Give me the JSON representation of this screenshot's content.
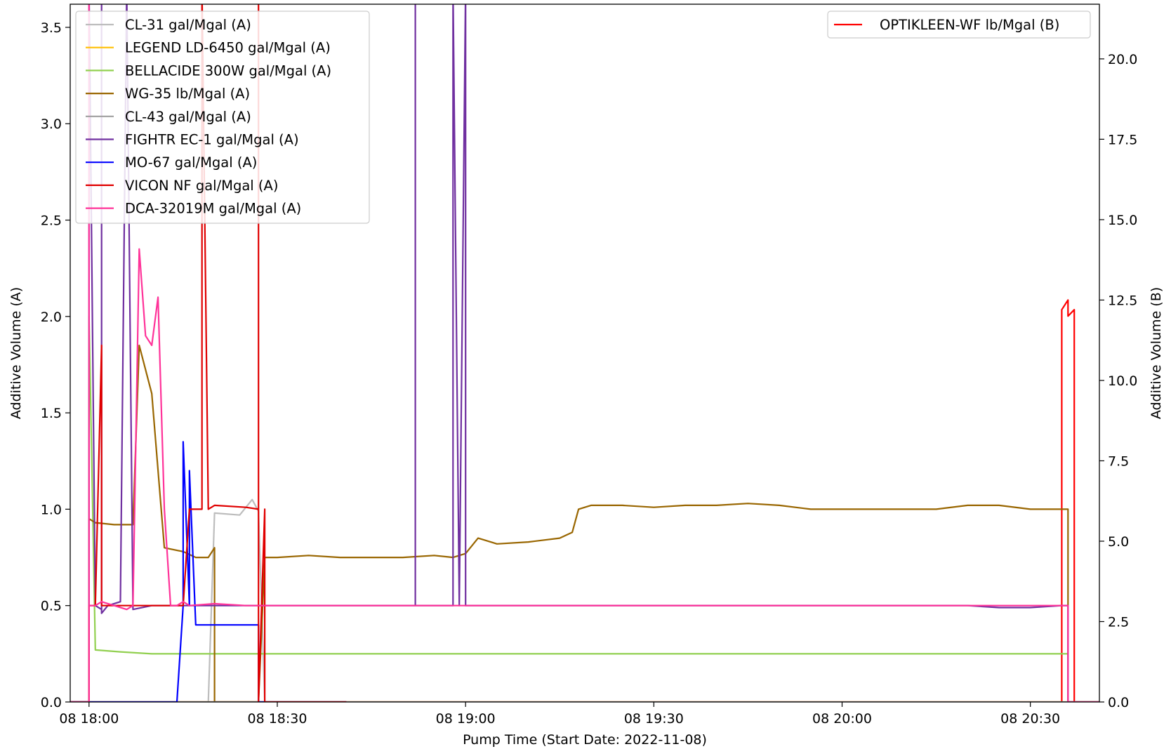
{
  "chart_data": {
    "type": "line",
    "title": "",
    "xlabel": "Pump Time (Start Date: 2022-11-08)",
    "ylabel_left": "Additive Volume (A)",
    "ylabel_right": "Additive Volume (B)",
    "x_unit": "time of day (HH:MM) on 2022-11-08",
    "xlim": [
      "17:57",
      "20:41"
    ],
    "x_ticks": [
      {
        "x": "18:00",
        "label": "08 18:00"
      },
      {
        "x": "18:30",
        "label": "08 18:30"
      },
      {
        "x": "19:00",
        "label": "08 19:00"
      },
      {
        "x": "19:30",
        "label": "08 19:30"
      },
      {
        "x": "20:00",
        "label": "08 20:00"
      },
      {
        "x": "20:30",
        "label": "08 20:30"
      }
    ],
    "ylim_left": [
      0,
      3.62
    ],
    "y_ticks_left": [
      {
        "v": 0,
        "label": "0.0"
      },
      {
        "v": 0.5,
        "label": "0.5"
      },
      {
        "v": 1.0,
        "label": "1.0"
      },
      {
        "v": 1.5,
        "label": "1.5"
      },
      {
        "v": 2.0,
        "label": "2.0"
      },
      {
        "v": 2.5,
        "label": "2.5"
      },
      {
        "v": 3.0,
        "label": "3.0"
      },
      {
        "v": 3.5,
        "label": "3.5"
      }
    ],
    "ylim_right": [
      0,
      21.7
    ],
    "y_ticks_right": [
      {
        "v": 0,
        "label": "0.0"
      },
      {
        "v": 2.5,
        "label": "2.5"
      },
      {
        "v": 5.0,
        "label": "5.0"
      },
      {
        "v": 7.5,
        "label": "7.5"
      },
      {
        "v": 10.0,
        "label": "10.0"
      },
      {
        "v": 12.5,
        "label": "12.5"
      },
      {
        "v": 15.0,
        "label": "15.0"
      },
      {
        "v": 17.5,
        "label": "17.5"
      },
      {
        "v": 20.0,
        "label": "20.0"
      }
    ],
    "grid": false,
    "legend_left_position": "upper-left",
    "legend_right_position": "upper-right",
    "series": [
      {
        "name": "CL-31 gal/Mgal (A)",
        "color": "#bdbdbd",
        "axis": "A",
        "x": [
          "17:57",
          "18:19",
          "18:20",
          "18:24",
          "18:26",
          "18:27",
          "18:28",
          "18:40"
        ],
        "y": [
          0,
          0,
          0.98,
          0.97,
          1.05,
          0.99,
          0,
          0
        ]
      },
      {
        "name": "LEGEND LD-6450 gal/Mgal (A)",
        "color": "#ffbf00",
        "axis": "A",
        "x": [
          "17:57",
          "20:41"
        ],
        "y": [
          0,
          0
        ]
      },
      {
        "name": "BELLACIDE 300W gal/Mgal (A)",
        "color": "#92d050",
        "axis": "A",
        "x": [
          "17:57",
          "18:00",
          "18:00",
          "18:01",
          "18:05",
          "18:10",
          "18:20",
          "18:40",
          "19:00",
          "19:30",
          "20:00",
          "20:30",
          "20:36",
          "20:36",
          "20:41"
        ],
        "y": [
          0,
          0,
          2.0,
          0.27,
          0.26,
          0.25,
          0.25,
          0.25,
          0.25,
          0.25,
          0.25,
          0.25,
          0.25,
          0,
          0
        ]
      },
      {
        "name": "WG-35 lb/Mgal (A)",
        "color": "#996600",
        "axis": "A",
        "x": [
          "17:57",
          "18:00",
          "18:00",
          "18:01",
          "18:04",
          "18:07",
          "18:08",
          "18:10",
          "18:12",
          "18:15",
          "18:17",
          "18:19",
          "18:20",
          "18:20",
          "18:22",
          "18:27",
          "18:28",
          "18:30",
          "18:35",
          "18:40",
          "18:45",
          "18:50",
          "18:55",
          "18:58",
          "19:00",
          "19:02",
          "19:05",
          "19:10",
          "19:15",
          "19:17",
          "19:18",
          "19:20",
          "19:25",
          "19:30",
          "19:35",
          "19:40",
          "19:45",
          "19:50",
          "19:55",
          "20:00",
          "20:05",
          "20:10",
          "20:15",
          "20:20",
          "20:25",
          "20:30",
          "20:36",
          "20:36",
          "20:41"
        ],
        "y": [
          0,
          0,
          0.95,
          0.93,
          0.92,
          0.92,
          1.85,
          1.6,
          0.8,
          0.78,
          0.75,
          0.75,
          0.8,
          0,
          0,
          0,
          0.75,
          0.75,
          0.76,
          0.75,
          0.75,
          0.75,
          0.76,
          0.75,
          0.77,
          0.85,
          0.82,
          0.83,
          0.85,
          0.88,
          1.0,
          1.02,
          1.02,
          1.01,
          1.02,
          1.02,
          1.03,
          1.02,
          1.0,
          1.0,
          1.0,
          1.0,
          1.0,
          1.02,
          1.02,
          1.0,
          1.0,
          0,
          0
        ]
      },
      {
        "name": "CL-43 gal/Mgal (A)",
        "color": "#a0a0a0",
        "axis": "A",
        "x": [
          "17:57",
          "20:41"
        ],
        "y": [
          0,
          0
        ]
      },
      {
        "name": "FIGHTR EC-1 gal/Mgal (A)",
        "color": "#7030a0",
        "axis": "A",
        "x": [
          "17:57",
          "18:00",
          "18:00",
          "18:01",
          "18:02",
          "18:02",
          "18:02",
          "18:03",
          "18:05",
          "18:06",
          "18:07",
          "18:10",
          "18:15",
          "18:20",
          "18:40",
          "18:52",
          "18:52",
          "18:52",
          "18:53",
          "18:55",
          "18:58",
          "18:58",
          "18:59",
          "19:00",
          "19:00",
          "19:00",
          "19:01",
          "19:30",
          "20:00",
          "20:20",
          "20:25",
          "20:30",
          "20:35",
          "20:36",
          "20:36",
          "20:41"
        ],
        "y": [
          0,
          0,
          3.7,
          0.5,
          0.48,
          3.7,
          0.46,
          0.5,
          0.52,
          3.7,
          0.48,
          0.5,
          0.5,
          0.5,
          0.5,
          0.5,
          3.7,
          0.5,
          0.5,
          0.5,
          0.5,
          3.7,
          0.5,
          3.7,
          0.5,
          0.5,
          0.5,
          0.5,
          0.5,
          0.5,
          0.49,
          0.49,
          0.5,
          0.5,
          0,
          0
        ]
      },
      {
        "name": "MO-67 gal/Mgal (A)",
        "color": "#0000ff",
        "axis": "A",
        "x": [
          "17:57",
          "18:14",
          "18:15",
          "18:15",
          "18:16",
          "18:16",
          "18:17",
          "18:17",
          "18:20",
          "18:25",
          "18:27",
          "18:27",
          "18:41"
        ],
        "y": [
          0,
          0,
          0.5,
          1.35,
          0.5,
          1.2,
          0.4,
          0.4,
          0.4,
          0.4,
          0.4,
          0,
          0
        ]
      },
      {
        "name": "VICON NF gal/Mgal (A)",
        "color": "#e00000",
        "axis": "A",
        "x": [
          "17:57",
          "18:00",
          "18:00",
          "18:01",
          "18:02",
          "18:02",
          "18:02",
          "18:03",
          "18:04",
          "18:08",
          "18:10",
          "18:14",
          "18:15",
          "18:16",
          "18:18",
          "18:18",
          "18:19",
          "18:20",
          "18:25",
          "18:27",
          "18:27",
          "18:27",
          "18:28",
          "18:28",
          "18:41"
        ],
        "y": [
          0,
          0,
          0.5,
          0.5,
          1.85,
          0.5,
          0.5,
          0.5,
          0.5,
          0.5,
          0.5,
          0.5,
          0.5,
          1.0,
          1.0,
          3.7,
          1.0,
          1.02,
          1.01,
          1.0,
          3.7,
          0,
          1.0,
          0,
          0
        ]
      },
      {
        "name": "DCA-32019M gal/Mgal (A)",
        "color": "#ff3399",
        "axis": "A",
        "x": [
          "17:57",
          "18:00",
          "18:00",
          "18:00",
          "18:01",
          "18:02",
          "18:04",
          "18:06",
          "18:07",
          "18:08",
          "18:09",
          "18:10",
          "18:11",
          "18:12",
          "18:13",
          "18:14",
          "18:15",
          "18:16",
          "18:20",
          "18:25",
          "18:30",
          "18:40",
          "18:50",
          "19:00",
          "19:30",
          "20:00",
          "20:20",
          "20:30",
          "20:36",
          "20:36",
          "20:41"
        ],
        "y": [
          0,
          0,
          3.7,
          0.5,
          0.5,
          0.52,
          0.5,
          0.48,
          0.5,
          2.35,
          1.9,
          1.85,
          2.1,
          1.0,
          0.5,
          0.5,
          0.52,
          0.5,
          0.51,
          0.5,
          0.5,
          0.5,
          0.5,
          0.5,
          0.5,
          0.5,
          0.5,
          0.5,
          0.5,
          0,
          0
        ]
      },
      {
        "name": "OPTIKLEEN-WF lb/Mgal (B)",
        "color": "#ff0000",
        "axis": "B",
        "x": [
          "17:57",
          "20:35",
          "20:35",
          "20:35",
          "20:36",
          "20:36",
          "20:37",
          "20:37",
          "20:37",
          "20:41"
        ],
        "y": [
          0,
          0,
          11.8,
          12.2,
          12.5,
          12.0,
          12.2,
          12.0,
          0,
          0
        ]
      }
    ]
  }
}
